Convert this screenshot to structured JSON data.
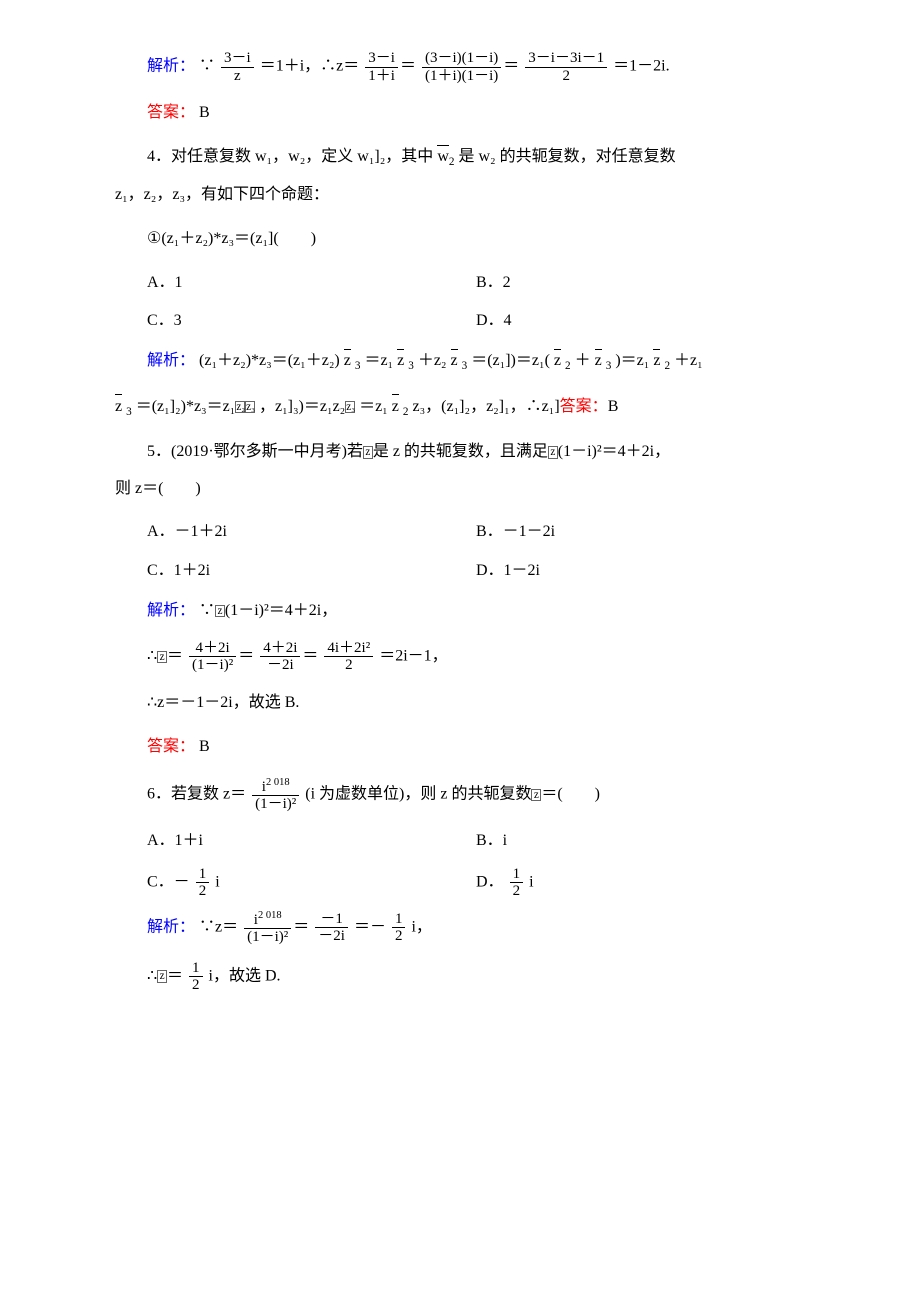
{
  "colors": {
    "blue": "#0000ff",
    "red": "#ff0000",
    "text": "#000000",
    "bg": "#ffffff"
  },
  "labels": {
    "jiexi": "解析：",
    "daan": "答案：",
    "ans_B": "B"
  },
  "q3": {
    "sol_prefix": "∵",
    "sol_mid": "＝1＋i，∴z＝",
    "sol_tail": "＝1－2i.",
    "frac1_num": "3－i",
    "frac1_den": "z",
    "frac2_num": "3－i",
    "frac2_den": "1＋i",
    "frac3_num": "(3－i)(1－i)",
    "frac3_den": "(1＋i)(1－i)",
    "frac4_num": "3－i－3i－1",
    "frac4_den": "2"
  },
  "q4": {
    "stem1": "4．对任意复数 w₁，w₂，定义 w₁]₂，其中 ",
    "stem_wbar": "w",
    "stem_wbar_sub": "2",
    "stem1b": " 是 w₂ 的共轭复数，对任意复数",
    "stem2": "z₁，z₂，z₃，有如下四个命题：",
    "stem3": "①(z₁＋z₂)*z₃＝(z₁](　　)",
    "optA": "A．1",
    "optB": "B．2",
    "optC": "C．3",
    "optD": "D．4",
    "sol1a": "(z₁＋z₂)*z₃＝(z₁＋z₂) ",
    "sol1b": "＝z₁ ",
    "sol1c": "＋z₂ ",
    "sol1d": "＝(z₁])＝z₁( ",
    "sol1e": "＋ ",
    "sol1f": ")＝z₁ ",
    "sol1g": "＋z₁",
    "sol2a": "＝(z₁]₂)*z₃＝z₁",
    "sol2b": "，z₁]₃)＝z₁z₂",
    "sol2c": "＝z₁ ",
    "sol2d": "z₃，(z₁]₂，z₂]₁，∴z₁]"
  },
  "q5": {
    "stem1": "5．(2019·鄂尔多斯一中月考)若",
    "stem1b": "是 z 的共轭复数，且满足",
    "stem1c": "(1－i)²＝4＋2i，",
    "stem2": "则 z＝(　　)",
    "optA": "A．－1＋2i",
    "optB": "B．－1－2i",
    "optC": "C．1＋2i",
    "optD": "D．1－2i",
    "sola": "∵",
    "solb": "(1－i)²＝4＋2i，",
    "sol2_pre": "∴",
    "sol2_mid": "＝",
    "f1n": "4＋2i",
    "f1d": "(1－i)²",
    "f2n": "4＋2i",
    "f2d": "－2i",
    "f3n": "4i＋2i²",
    "f3d": "2",
    "sol2_tail": "＝2i－1，",
    "sol3": "∴z＝－1－2i，故选 B."
  },
  "q6": {
    "stem1": "6．若复数 z＝",
    "fs_num": "i",
    "fs_exp": "2 018",
    "fs_den": "(1－i)²",
    "stem1b": "(i 为虚数单位)，则 z 的共轭复数",
    "stem1c": "＝(　　)",
    "optA": "A．1＋i",
    "optB": "B．i",
    "optC_pre": "C．－",
    "optC_num": "1",
    "optC_den": "2",
    "optC_suf": "i",
    "optD_pre": "D．",
    "optD_num": "1",
    "optD_den": "2",
    "optD_suf": "i",
    "sol_pre": "∵z＝",
    "s1_num": "i",
    "s1_exp": "2 018",
    "s1_den": "(1－i)²",
    "s2_num": "－1",
    "s2_den": "－2i",
    "sol_mid2": "＝－",
    "s3_num": "1",
    "s3_den": "2",
    "sol_tail": "i，",
    "sol2_pre": "∴",
    "sol2_mid": "＝",
    "s4_num": "1",
    "s4_den": "2",
    "sol2_tail": "i，故选 D."
  }
}
